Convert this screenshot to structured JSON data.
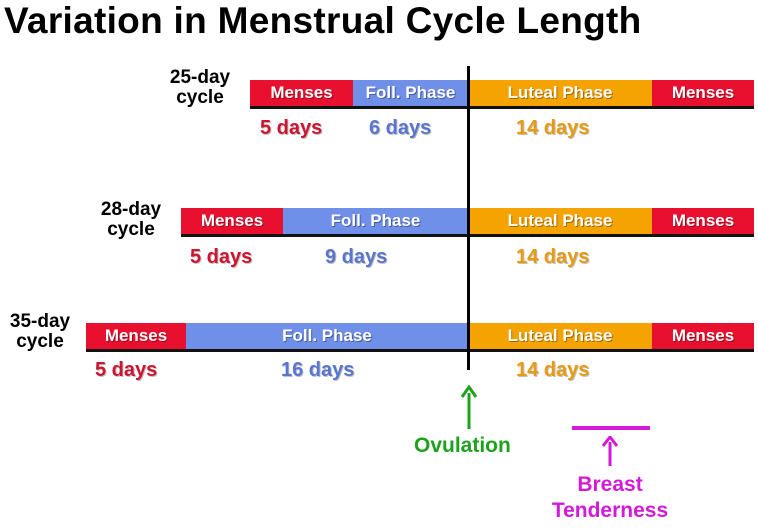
{
  "title": "Variation in Menstrual Cycle Length",
  "colors": {
    "menses": "#e8102e",
    "follicular": "#6f8fe8",
    "luteal": "#f5a300",
    "menses_text": "#cc1530",
    "follicular_text": "#5875d0",
    "luteal_text": "#e89a10",
    "ovulation": "#1ea21e",
    "breast": "#d21ad8"
  },
  "cycles": [
    {
      "label_line1": "25-day",
      "label_line2": "cycle",
      "segments": [
        {
          "label": "Menses",
          "phase": "menses"
        },
        {
          "label": "Foll. Phase",
          "phase": "follicular"
        },
        {
          "label": "Luteal Phase",
          "phase": "luteal"
        },
        {
          "label": "Menses",
          "phase": "menses"
        }
      ],
      "durations": [
        {
          "text": "5 days",
          "phase": "menses"
        },
        {
          "text": "6 days",
          "phase": "follicular"
        },
        {
          "text": "14 days",
          "phase": "luteal"
        }
      ]
    },
    {
      "label_line1": "28-day",
      "label_line2": "cycle",
      "segments": [
        {
          "label": "Menses",
          "phase": "menses"
        },
        {
          "label": "Foll. Phase",
          "phase": "follicular"
        },
        {
          "label": "Luteal Phase",
          "phase": "luteal"
        },
        {
          "label": "Menses",
          "phase": "menses"
        }
      ],
      "durations": [
        {
          "text": "5 days",
          "phase": "menses"
        },
        {
          "text": "9 days",
          "phase": "follicular"
        },
        {
          "text": "14 days",
          "phase": "luteal"
        }
      ]
    },
    {
      "label_line1": "35-day",
      "label_line2": "cycle",
      "segments": [
        {
          "label": "Menses",
          "phase": "menses"
        },
        {
          "label": "Foll. Phase",
          "phase": "follicular"
        },
        {
          "label": "Luteal Phase",
          "phase": "luteal"
        },
        {
          "label": "Menses",
          "phase": "menses"
        }
      ],
      "durations": [
        {
          "text": "5 days",
          "phase": "menses"
        },
        {
          "text": "16 days",
          "phase": "follicular"
        },
        {
          "text": "14 days",
          "phase": "luteal"
        }
      ]
    }
  ],
  "ovulation_label": "Ovulation",
  "breast_label_line1": "Breast",
  "breast_label_line2": "Tenderness"
}
